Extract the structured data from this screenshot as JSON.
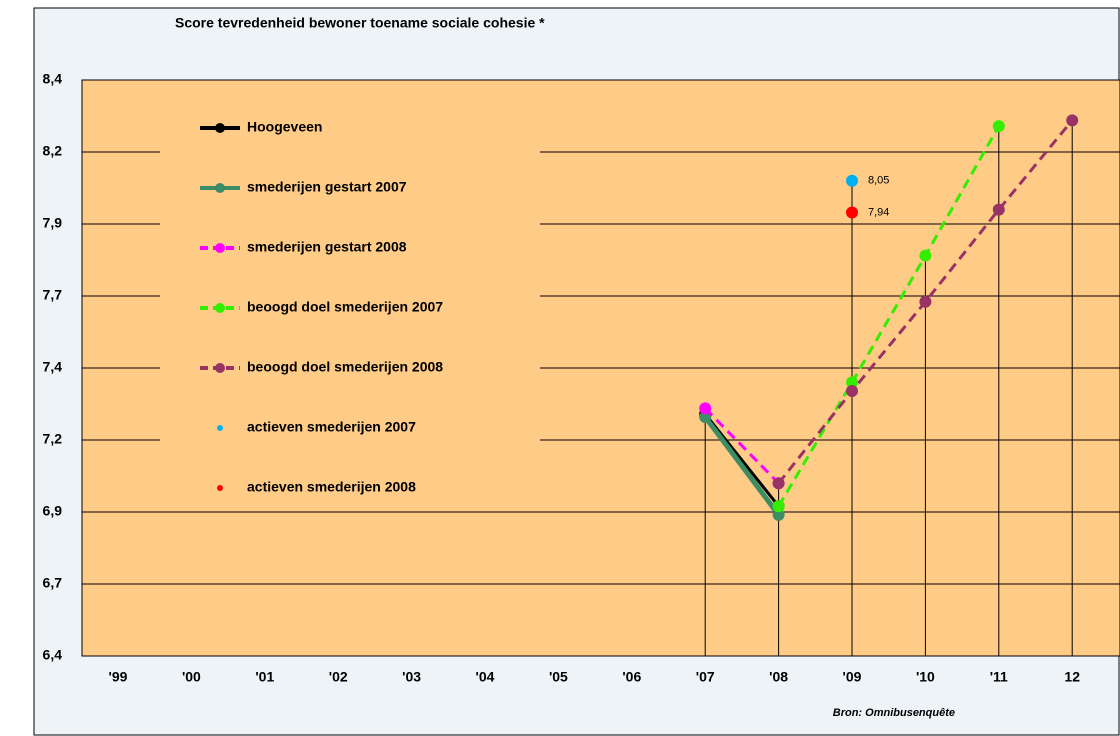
{
  "chart_data": {
    "type": "line",
    "title": "Score tevredenheid  bewoner  toename sociale cohesie *",
    "source": "Bron: Omnibusenquête",
    "categories": [
      "'99",
      "'00",
      "'01",
      "'02",
      "'03",
      "'04",
      "'05",
      "'06",
      "'07",
      "'08",
      "'09",
      "'10",
      "'11",
      "12"
    ],
    "ylim": [
      6.4,
      8.4
    ],
    "yticks": [
      {
        "value": 6.4,
        "label": "6,4"
      },
      {
        "value": 6.65,
        "label": "6,7"
      },
      {
        "value": 6.9,
        "label": "6,9"
      },
      {
        "value": 7.15,
        "label": "7,2"
      },
      {
        "value": 7.4,
        "label": "7,4"
      },
      {
        "value": 7.65,
        "label": "7,7"
      },
      {
        "value": 7.9,
        "label": "7,9"
      },
      {
        "value": 8.15,
        "label": "8,2"
      },
      {
        "value": 8.4,
        "label": "8,4"
      }
    ],
    "grid": true,
    "series": [
      {
        "name": "Hoogeveen",
        "color": "#000000",
        "dash": false,
        "line": true,
        "values": [
          null,
          null,
          null,
          null,
          null,
          null,
          null,
          null,
          7.24,
          6.92,
          null,
          null,
          null,
          null
        ]
      },
      {
        "name": "smederijen gestart 2007",
        "color": "#3c8c64",
        "dash": false,
        "line": true,
        "values": [
          null,
          null,
          null,
          null,
          null,
          null,
          null,
          null,
          7.23,
          6.89,
          null,
          null,
          null,
          null
        ]
      },
      {
        "name": "smederijen gestart 2008",
        "color": "#ff00ff",
        "dash": true,
        "line": true,
        "values": [
          null,
          null,
          null,
          null,
          null,
          null,
          null,
          null,
          7.26,
          7.0,
          null,
          null,
          null,
          null
        ]
      },
      {
        "name": "beoogd doel smederijen 2007",
        "color": "#33ee00",
        "dash": true,
        "line": true,
        "values": [
          null,
          null,
          null,
          null,
          null,
          null,
          null,
          null,
          null,
          6.92,
          7.35,
          7.79,
          8.24,
          null
        ]
      },
      {
        "name": "beoogd doel smederijen 2008",
        "color": "#993366",
        "dash": true,
        "line": true,
        "values": [
          null,
          null,
          null,
          null,
          null,
          null,
          null,
          null,
          null,
          7.0,
          7.32,
          7.63,
          7.95,
          8.26
        ]
      },
      {
        "name": "actieven smederijen 2007",
        "color": "#00b0f0",
        "dash": false,
        "line": false,
        "values": [
          null,
          null,
          null,
          null,
          null,
          null,
          null,
          null,
          null,
          null,
          8.05,
          null,
          null,
          null
        ],
        "value_labels": [
          null,
          null,
          null,
          null,
          null,
          null,
          null,
          null,
          null,
          null,
          "8,05",
          null,
          null,
          null
        ]
      },
      {
        "name": "actieven smederijen 2008",
        "color": "#ff0000",
        "dash": false,
        "line": false,
        "values": [
          null,
          null,
          null,
          null,
          null,
          null,
          null,
          null,
          null,
          null,
          7.94,
          null,
          null,
          null
        ],
        "value_labels": [
          null,
          null,
          null,
          null,
          null,
          null,
          null,
          null,
          null,
          null,
          "7,94",
          null,
          null,
          null
        ]
      }
    ]
  }
}
